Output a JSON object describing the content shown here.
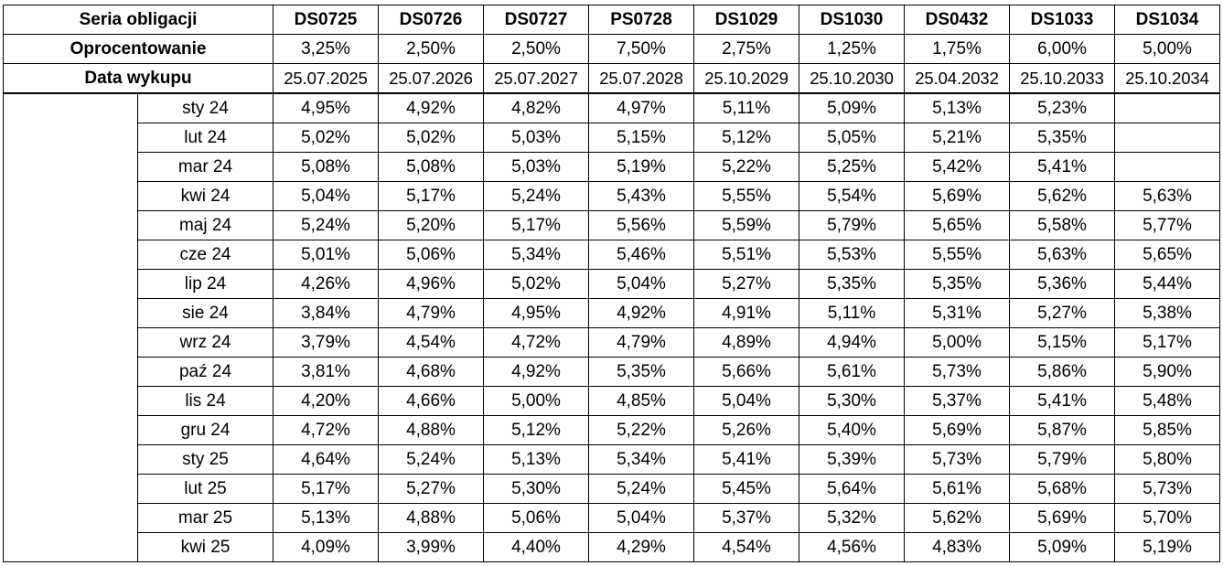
{
  "header": {
    "series_label": "Seria obligacji",
    "rate_label": "Oprocentowanie",
    "date_label": "Data wykupu"
  },
  "series": [
    "DS0725",
    "DS0726",
    "DS0727",
    "PS0728",
    "DS1029",
    "DS1030",
    "DS0432",
    "DS1033",
    "DS1034"
  ],
  "rates": [
    "3,25%",
    "2,50%",
    "2,50%",
    "7,50%",
    "2,75%",
    "1,25%",
    "1,75%",
    "6,00%",
    "5,00%"
  ],
  "maturity_dates": [
    "25.07.2025",
    "25.07.2026",
    "25.07.2027",
    "25.07.2028",
    "25.10.2029",
    "25.10.2030",
    "25.04.2032",
    "25.10.2033",
    "25.10.2034"
  ],
  "rows": [
    {
      "month": "sty 24",
      "values": [
        "4,95%",
        "4,92%",
        "4,82%",
        "4,97%",
        "5,11%",
        "5,09%",
        "5,13%",
        "5,23%",
        ""
      ]
    },
    {
      "month": "lut 24",
      "values": [
        "5,02%",
        "5,02%",
        "5,03%",
        "5,15%",
        "5,12%",
        "5,05%",
        "5,21%",
        "5,35%",
        ""
      ]
    },
    {
      "month": "mar 24",
      "values": [
        "5,08%",
        "5,08%",
        "5,03%",
        "5,19%",
        "5,22%",
        "5,25%",
        "5,42%",
        "5,41%",
        ""
      ]
    },
    {
      "month": "kwi 24",
      "values": [
        "5,04%",
        "5,17%",
        "5,24%",
        "5,43%",
        "5,55%",
        "5,54%",
        "5,69%",
        "5,62%",
        "5,63%"
      ]
    },
    {
      "month": "maj 24",
      "values": [
        "5,24%",
        "5,20%",
        "5,17%",
        "5,56%",
        "5,59%",
        "5,79%",
        "5,65%",
        "5,58%",
        "5,77%"
      ]
    },
    {
      "month": "cze 24",
      "values": [
        "5,01%",
        "5,06%",
        "5,34%",
        "5,46%",
        "5,51%",
        "5,53%",
        "5,55%",
        "5,63%",
        "5,65%"
      ]
    },
    {
      "month": "lip 24",
      "values": [
        "4,26%",
        "4,96%",
        "5,02%",
        "5,04%",
        "5,27%",
        "5,35%",
        "5,35%",
        "5,36%",
        "5,44%"
      ]
    },
    {
      "month": "sie 24",
      "values": [
        "3,84%",
        "4,79%",
        "4,95%",
        "4,92%",
        "4,91%",
        "5,11%",
        "5,31%",
        "5,27%",
        "5,38%"
      ]
    },
    {
      "month": "wrz 24",
      "values": [
        "3,79%",
        "4,54%",
        "4,72%",
        "4,79%",
        "4,89%",
        "4,94%",
        "5,00%",
        "5,15%",
        "5,17%"
      ]
    },
    {
      "month": "paź 24",
      "values": [
        "3,81%",
        "4,68%",
        "4,92%",
        "5,35%",
        "5,66%",
        "5,61%",
        "5,73%",
        "5,86%",
        "5,90%"
      ]
    },
    {
      "month": "lis 24",
      "values": [
        "4,20%",
        "4,66%",
        "5,00%",
        "4,85%",
        "5,04%",
        "5,30%",
        "5,37%",
        "5,41%",
        "5,48%"
      ]
    },
    {
      "month": "gru 24",
      "values": [
        "4,72%",
        "4,88%",
        "5,12%",
        "5,22%",
        "5,26%",
        "5,40%",
        "5,69%",
        "5,87%",
        "5,85%"
      ]
    },
    {
      "month": "sty 25",
      "values": [
        "4,64%",
        "5,24%",
        "5,13%",
        "5,34%",
        "5,41%",
        "5,39%",
        "5,73%",
        "5,79%",
        "5,80%"
      ]
    },
    {
      "month": "lut 25",
      "values": [
        "5,17%",
        "5,27%",
        "5,30%",
        "5,24%",
        "5,45%",
        "5,64%",
        "5,61%",
        "5,68%",
        "5,73%"
      ]
    },
    {
      "month": "mar 25",
      "values": [
        "5,13%",
        "4,88%",
        "5,06%",
        "5,04%",
        "5,37%",
        "5,32%",
        "5,62%",
        "5,69%",
        "5,70%"
      ]
    },
    {
      "month": "kwi 25",
      "values": [
        "4,09%",
        "3,99%",
        "4,40%",
        "4,29%",
        "4,54%",
        "4,56%",
        "4,83%",
        "5,09%",
        "5,19%"
      ]
    }
  ]
}
